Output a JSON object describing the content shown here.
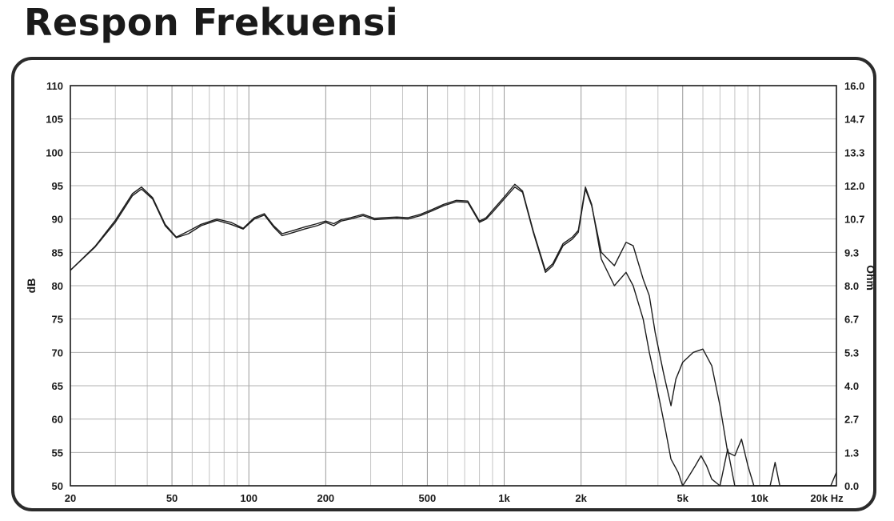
{
  "title": "Respon Frekuensi",
  "chart_data": {
    "type": "line",
    "title": "Respon Frekuensi",
    "xlabel": "",
    "ylabel": "dB",
    "y2label": "Ohm",
    "xscale": "log",
    "xlim": [
      20,
      20000
    ],
    "ylim": [
      50,
      110
    ],
    "y2lim": [
      0.0,
      16.0
    ],
    "grid": true,
    "x_ticks": [
      {
        "value": 20,
        "label": "20"
      },
      {
        "value": 50,
        "label": "50"
      },
      {
        "value": 100,
        "label": "100"
      },
      {
        "value": 200,
        "label": "200"
      },
      {
        "value": 500,
        "label": "500"
      },
      {
        "value": 1000,
        "label": "1k"
      },
      {
        "value": 2000,
        "label": "2k"
      },
      {
        "value": 5000,
        "label": "5k"
      },
      {
        "value": 10000,
        "label": "10k"
      },
      {
        "value": 20000,
        "label": "20k Hz"
      }
    ],
    "y_ticks": [
      50,
      55,
      60,
      65,
      70,
      75,
      80,
      85,
      90,
      95,
      100,
      105,
      110
    ],
    "y2_ticks": [
      "0.0",
      "1.3",
      "2.7",
      "4.0",
      "5.3",
      "6.7",
      "8.0",
      "9.3",
      "10.7",
      "12.0",
      "13.3",
      "14.7",
      "16.0"
    ],
    "series": [
      {
        "x": [
          20,
          25,
          30,
          35,
          38,
          42,
          47,
          52,
          58,
          65,
          75,
          85,
          95,
          105,
          115,
          125,
          135,
          150,
          165,
          185,
          200,
          215,
          230,
          250,
          280,
          310,
          340,
          380,
          420,
          470,
          520,
          580,
          650,
          720,
          800,
          850,
          900,
          1000,
          1100,
          1180,
          1300,
          1450,
          1550,
          1700,
          1850,
          1950,
          2080,
          2200,
          2400,
          2700,
          3000,
          3200,
          3500,
          3700,
          3900,
          4200,
          4500,
          4700,
          5000,
          5500,
          6000,
          6500,
          7000,
          7500,
          8000,
          8500,
          9000,
          9500,
          10000,
          11000,
          12000,
          13000,
          14000,
          15000,
          16000,
          17000,
          18000,
          19000,
          20000
        ],
        "values": [
          82.3,
          85.8,
          89.5,
          93.5,
          94.5,
          93.0,
          89.0,
          87.2,
          87.8,
          89.0,
          89.8,
          89.2,
          88.5,
          90.0,
          90.6,
          88.8,
          87.5,
          88.0,
          88.5,
          89.0,
          89.5,
          89.0,
          89.7,
          90.0,
          90.5,
          89.9,
          90.0,
          90.1,
          90.0,
          90.5,
          91.2,
          92.0,
          92.6,
          92.5,
          89.5,
          90.0,
          91.0,
          93.0,
          94.8,
          94.0,
          88.0,
          82.0,
          83.0,
          86.0,
          87.0,
          88.0,
          94.5,
          92.0,
          85.0,
          83.0,
          86.5,
          86.0,
          81.0,
          78.5,
          73.0,
          67.0,
          62.0,
          66.0,
          68.5,
          70.0,
          70.5,
          68.0,
          62.0,
          55.0,
          54.5,
          57.0,
          53.0,
          50,
          50,
          50,
          50,
          50,
          50,
          50,
          50,
          50,
          50,
          50,
          50
        ]
      },
      {
        "x": [
          20,
          25,
          30,
          35,
          38,
          42,
          47,
          52,
          58,
          65,
          75,
          85,
          95,
          105,
          115,
          125,
          135,
          150,
          165,
          185,
          200,
          215,
          230,
          250,
          280,
          310,
          340,
          380,
          420,
          470,
          520,
          580,
          650,
          720,
          800,
          850,
          900,
          1000,
          1100,
          1180,
          1300,
          1450,
          1550,
          1700,
          1850,
          1950,
          2080,
          2200,
          2400,
          2700,
          3000,
          3200,
          3500,
          3700,
          3900,
          4100,
          4300,
          4500,
          4800,
          5000,
          5300,
          5600,
          5900,
          6200,
          6500,
          7000,
          7500,
          8000,
          8500,
          9000,
          10000,
          11000,
          11500,
          12000,
          13000,
          14000,
          15000,
          16000,
          17000,
          18000,
          19000,
          20000
        ],
        "values": [
          82.3,
          85.9,
          89.8,
          93.8,
          94.8,
          93.2,
          89.2,
          87.3,
          88.2,
          89.2,
          90.0,
          89.5,
          88.6,
          90.2,
          90.8,
          89.0,
          87.8,
          88.3,
          88.8,
          89.3,
          89.7,
          89.3,
          89.9,
          90.2,
          90.7,
          90.1,
          90.2,
          90.3,
          90.2,
          90.7,
          91.4,
          92.2,
          92.8,
          92.7,
          89.7,
          90.2,
          91.3,
          93.3,
          95.2,
          94.2,
          88.2,
          82.3,
          83.3,
          86.3,
          87.3,
          88.3,
          94.8,
          92.2,
          84.0,
          80.0,
          82.0,
          80.0,
          75.0,
          70.0,
          66.0,
          62.0,
          58.0,
          54.0,
          52.0,
          50,
          51.5,
          53.0,
          54.5,
          53.0,
          51.0,
          50,
          55.5,
          50,
          50,
          50,
          50,
          50,
          53.5,
          50,
          50,
          50,
          50,
          50,
          50,
          50,
          50,
          52
        ]
      }
    ]
  }
}
